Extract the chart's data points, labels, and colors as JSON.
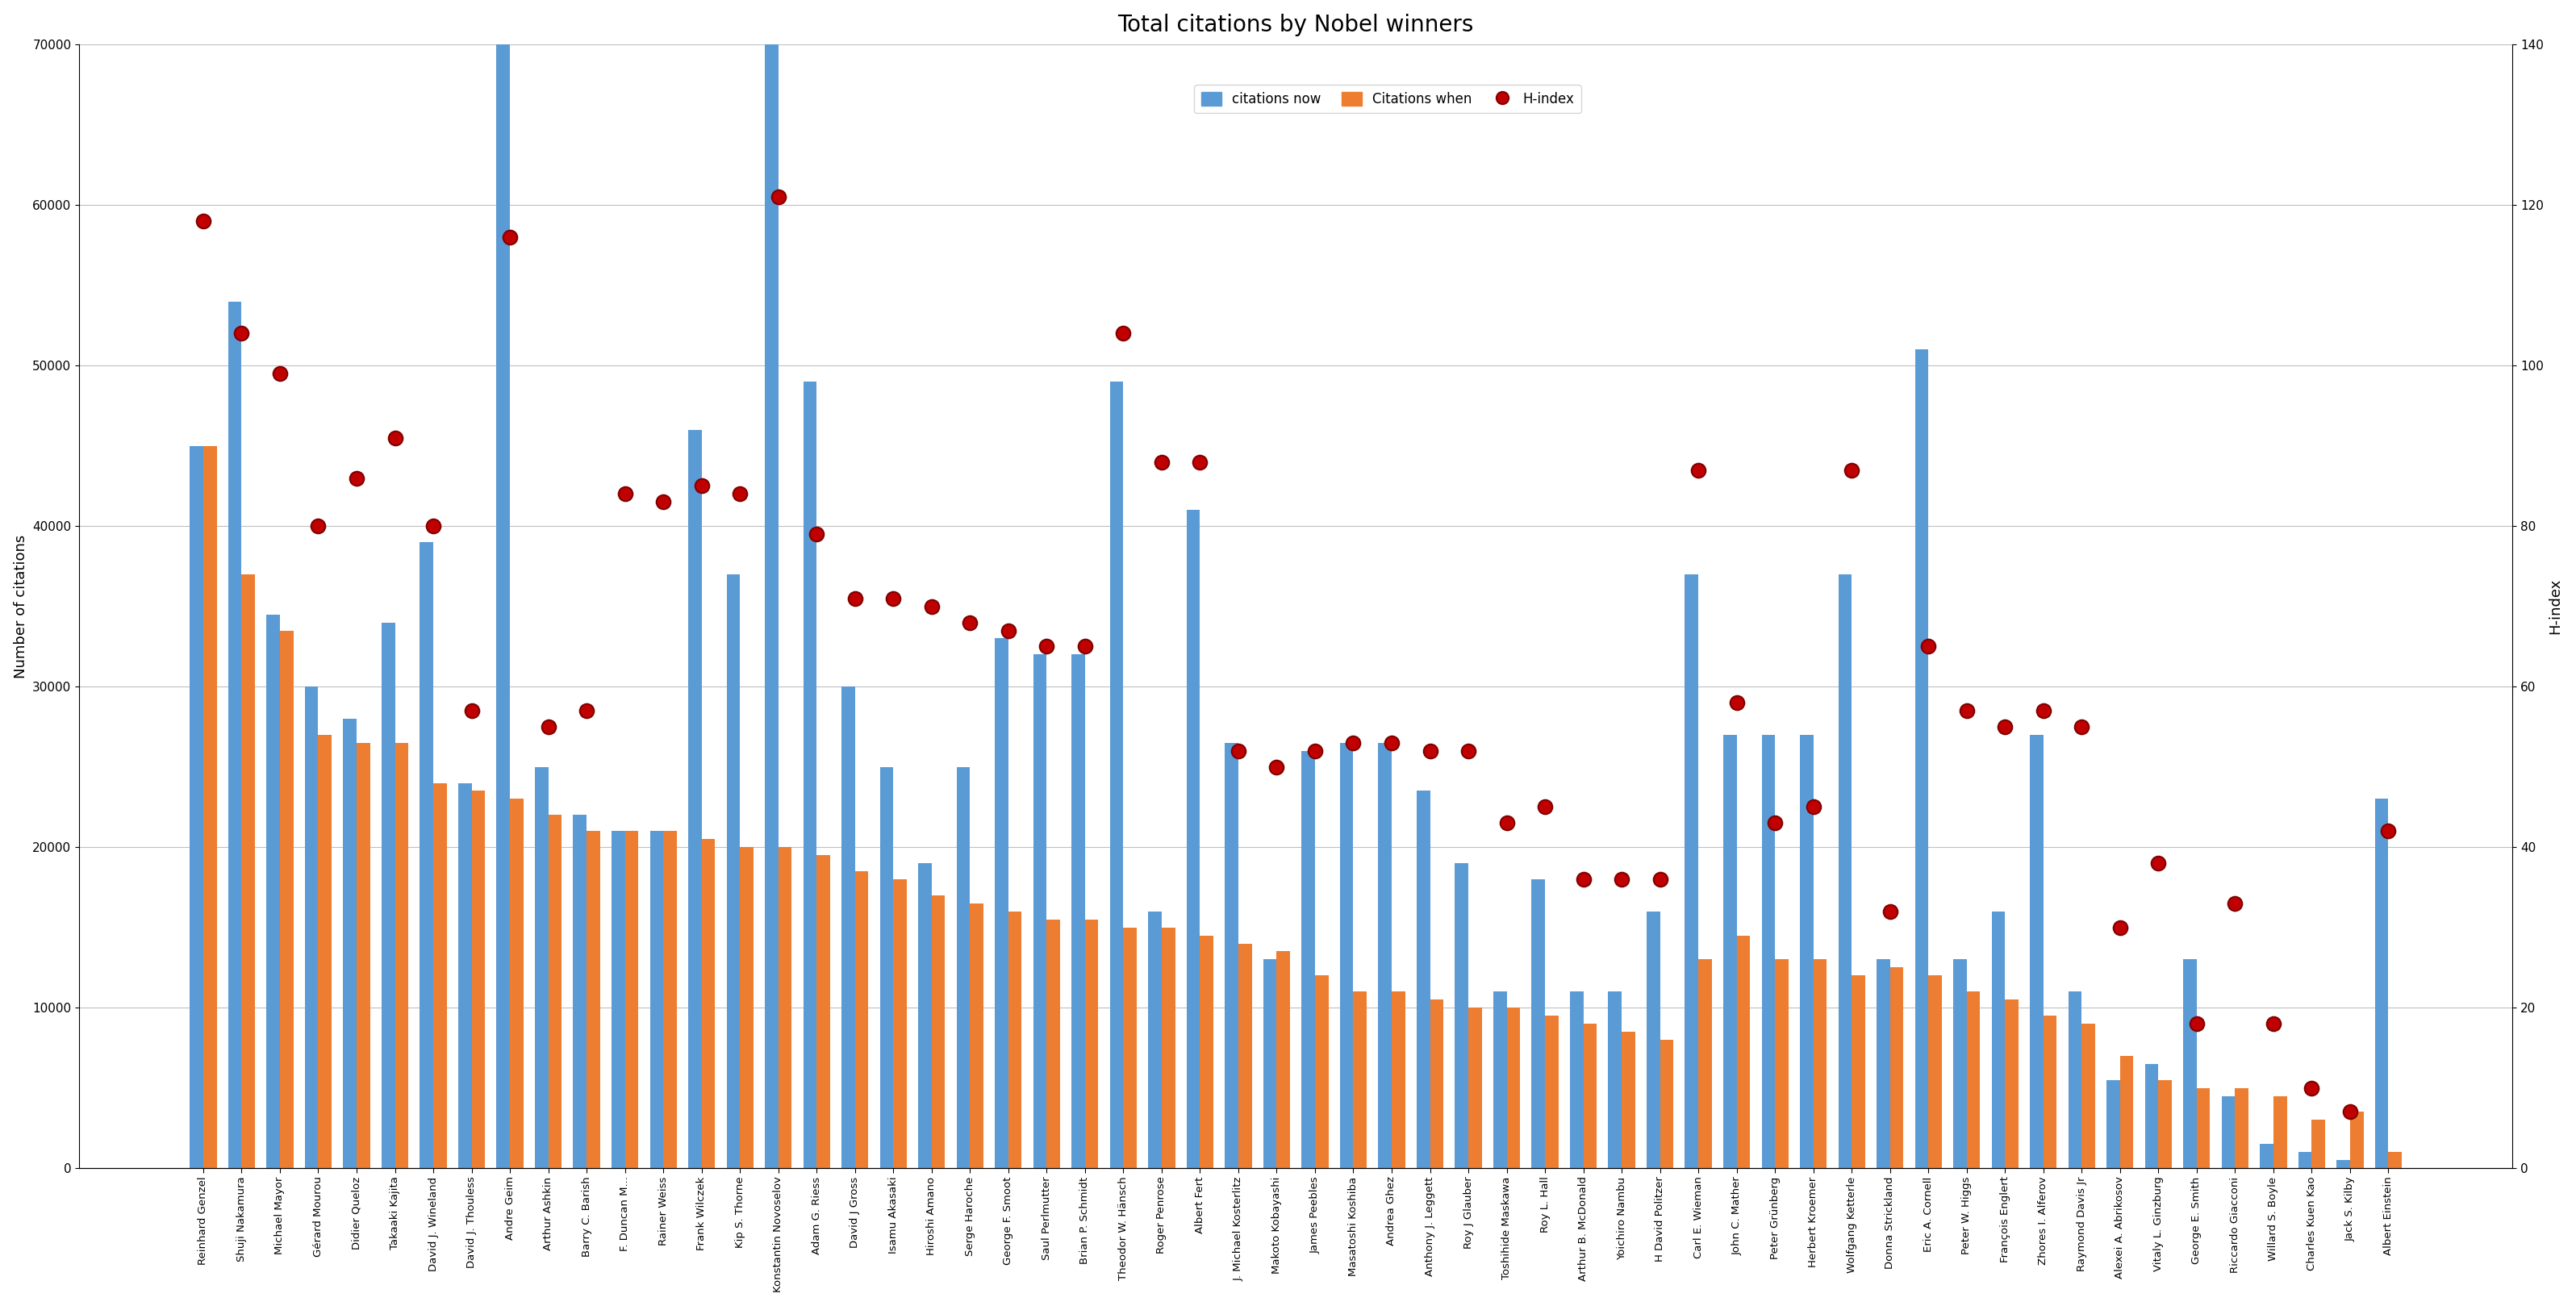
{
  "title": "Total citations by Nobel winners",
  "ylabel_left": "Number of citations",
  "ylabel_right": "H-index",
  "legend": [
    "citations now",
    "Citations when",
    "H-index"
  ],
  "bar_color_now": "#5B9BD5",
  "bar_color_when": "#ED7D31",
  "hindex_color": "#C00000",
  "names": [
    "Reinhard Genzel",
    "Shuji Nakamura",
    "Michael Mayor",
    "Gérard Mourou",
    "Didier Queloz",
    "Takaaki Kajita",
    "David J. Wineland",
    "David J. Thouless",
    "Andre Geim",
    "Arthur Ashkin",
    "Barry C. Barish",
    "F. Duncan M...",
    "Rainer Weiss",
    "Frank Wilczek",
    "Kip S. Thorne",
    "Konstantin Novoselov",
    "Adam G. Riess",
    "David J Gross",
    "Isamu Akasaki",
    "Hiroshi Amano",
    "Serge Haroche",
    "George F. Smoot",
    "Saul Perlmutter",
    "Brian P. Schmidt",
    "Theodor W. Hänsch",
    "Roger Penrose",
    "Albert Fert",
    "J. Michael Kosterlitz",
    "Makoto Kobayashi",
    "James Peebles",
    "Masatoshi Koshiba",
    "Andrea Ghez",
    "Anthony J. Leggett",
    "Roy J Glauber",
    "Toshihide Maskawa",
    "Roy L. Hall",
    "Arthur B. McDonald",
    "Yoichiro Nambu",
    "H David Politzer",
    "Carl E. Wieman",
    "John C. Mather",
    "Peter Grünberg",
    "Herbert Kroemer",
    "Wolfgang Ketterle",
    "Donna Strickland",
    "Eric A. Cornell",
    "Peter W. Higgs",
    "François Englert",
    "Zhores I. Alferov",
    "Raymond Davis Jr",
    "Alexei A. Abrikosov",
    "Vitaly L. Ginzburg",
    "George E. Smith",
    "Riccardo Giacconi",
    "Willard S. Boyle",
    "Charles Kuen Kao",
    "Jack S. Kilby",
    "Albert Einstein"
  ],
  "citations_now": [
    45000,
    54000,
    34500,
    30000,
    28000,
    34000,
    39000,
    24000,
    70000,
    25000,
    22000,
    21000,
    21000,
    46000,
    37000,
    70000,
    49000,
    30000,
    25000,
    19000,
    25000,
    33000,
    32000,
    32000,
    49000,
    16000,
    41000,
    26500,
    13000,
    26000,
    26500,
    26500,
    23500,
    19000,
    11000,
    18000,
    11000,
    11000,
    16000,
    37000,
    27000,
    27000,
    27000,
    37000,
    13000,
    51000,
    13000,
    16000,
    27000,
    11000,
    5500,
    6500,
    13000,
    4500,
    1500,
    1000,
    500,
    23000
  ],
  "citations_when": [
    45000,
    37000,
    33500,
    27000,
    26500,
    26500,
    24000,
    23500,
    23000,
    22000,
    21000,
    21000,
    21000,
    20500,
    20000,
    20000,
    19500,
    18500,
    18000,
    17000,
    16500,
    16000,
    15500,
    15500,
    15000,
    15000,
    14500,
    14000,
    13500,
    12000,
    11000,
    11000,
    10500,
    10000,
    10000,
    9500,
    9000,
    8500,
    8000,
    13000,
    14500,
    13000,
    13000,
    12000,
    12500,
    12000,
    11000,
    10500,
    9500,
    9000,
    7000,
    5500,
    5000,
    5000,
    4500,
    3000,
    3500,
    1000
  ],
  "hindex": [
    118,
    104,
    99,
    80,
    86,
    91,
    80,
    57,
    116,
    55,
    57,
    84,
    83,
    85,
    84,
    121,
    79,
    71,
    71,
    70,
    68,
    67,
    65,
    65,
    104,
    88,
    88,
    52,
    50,
    52,
    53,
    53,
    52,
    52,
    43,
    45,
    36,
    36,
    36,
    87,
    58,
    43,
    45,
    87,
    32,
    65,
    57,
    55,
    57,
    55,
    30,
    38,
    18,
    33,
    18,
    10,
    7,
    42
  ],
  "ylim_left": [
    0,
    70000
  ],
  "ylim_right": [
    0,
    140
  ],
  "yticks_left": [
    0,
    10000,
    20000,
    30000,
    40000,
    50000,
    60000,
    70000
  ],
  "yticks_right": [
    0,
    20,
    40,
    60,
    80,
    100,
    120,
    140
  ],
  "background_color": "#ffffff",
  "grid_color": "#bfbfbf"
}
